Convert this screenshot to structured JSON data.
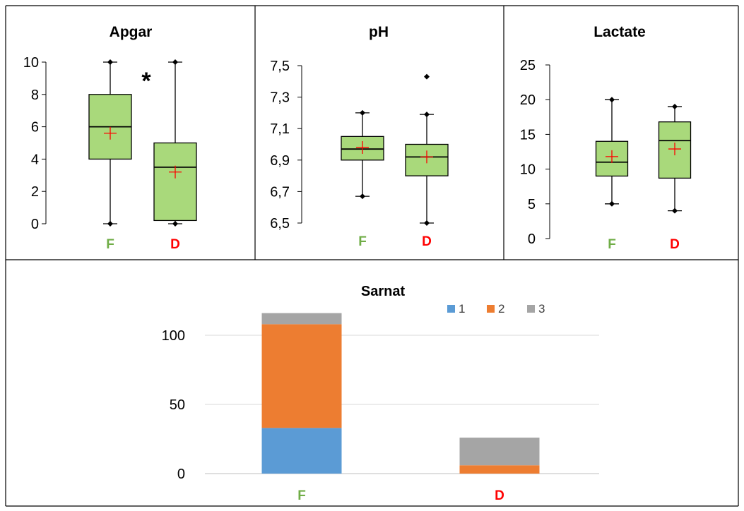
{
  "colors": {
    "box_fill": "#a9d97b",
    "mean_marker": "#ff0000",
    "cat_F": "#70ad47",
    "cat_D": "#ff0000",
    "series_1": "#5b9bd5",
    "series_2": "#ed7d31",
    "series_3": "#a5a5a5",
    "gridline": "#d9d9d9"
  },
  "chart_data": [
    {
      "type": "boxplot",
      "title": "Apgar",
      "categories": [
        "F",
        "D"
      ],
      "yticks": [
        "0",
        "2",
        "4",
        "6",
        "8",
        "10"
      ],
      "ylim": [
        0,
        10
      ],
      "significance_marker": "*",
      "boxes": [
        {
          "category": "F",
          "min": 0,
          "q1": 4,
          "median": 6,
          "q3": 8,
          "max": 10,
          "mean": 5.6,
          "outliers": []
        },
        {
          "category": "D",
          "min": 0,
          "q1": 0.2,
          "median": 3.5,
          "q3": 5,
          "max": 10,
          "mean": 3.2,
          "outliers": []
        }
      ]
    },
    {
      "type": "boxplot",
      "title": "pH",
      "categories": [
        "F",
        "D"
      ],
      "yticks": [
        "6,5",
        "6,7",
        "6,9",
        "7,1",
        "7,3",
        "7,5"
      ],
      "ylim": [
        6.5,
        7.5
      ],
      "boxes": [
        {
          "category": "F",
          "min": 6.67,
          "q1": 6.9,
          "median": 6.97,
          "q3": 7.05,
          "max": 7.2,
          "mean": 6.98,
          "outliers": []
        },
        {
          "category": "D",
          "min": 6.5,
          "q1": 6.8,
          "median": 6.92,
          "q3": 7.0,
          "max": 7.19,
          "mean": 6.92,
          "outliers": [
            7.43
          ]
        }
      ]
    },
    {
      "type": "boxplot",
      "title": "Lactate",
      "categories": [
        "F",
        "D"
      ],
      "yticks": [
        "0",
        "5",
        "10",
        "15",
        "20",
        "25"
      ],
      "ylim": [
        0,
        25
      ],
      "boxes": [
        {
          "category": "F",
          "min": 5,
          "q1": 9,
          "median": 11,
          "q3": 14,
          "max": 20,
          "mean": 11.8,
          "outliers": []
        },
        {
          "category": "D",
          "min": 4,
          "q1": 8.7,
          "median": 14.1,
          "q3": 16.8,
          "max": 19,
          "mean": 12.9,
          "outliers": []
        }
      ]
    },
    {
      "type": "bar",
      "stacked": true,
      "title": "Sarnat",
      "categories": [
        "F",
        "D"
      ],
      "yticks": [
        "0",
        "50",
        "100"
      ],
      "ylim": [
        0,
        120
      ],
      "grid": true,
      "legend_position": "top-right",
      "series": [
        {
          "name": "1",
          "values": [
            33,
            0
          ]
        },
        {
          "name": "2",
          "values": [
            75,
            6
          ]
        },
        {
          "name": "3",
          "values": [
            8,
            20
          ]
        }
      ]
    }
  ]
}
